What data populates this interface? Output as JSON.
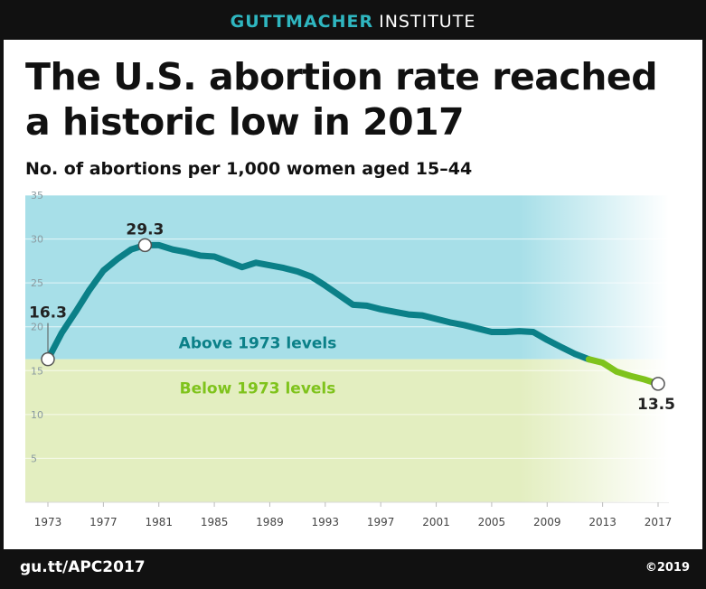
{
  "header": {
    "brand": "GUTTMACHER",
    "institute": "INSTITUTE"
  },
  "title_line1": "The U.S. abortion rate reached",
  "title_line2": "a historic low in 2017",
  "footer": {
    "url": "gu.tt/APC2017",
    "copyright": "©2019"
  },
  "colors": {
    "above_fill": "#a7dfe8",
    "below_fill": "#e3eec0",
    "line_above": "#0b8088",
    "line_below": "#7fc31c",
    "above_text": "#0b8088",
    "below_text": "#7fc31c"
  },
  "chart_data": {
    "type": "line",
    "title": "No. of abortions per 1,000 women aged 15–44",
    "ylim": [
      0,
      35
    ],
    "yticks": [
      5,
      10,
      15,
      20,
      25,
      30,
      35
    ],
    "xlim": [
      1973,
      2017
    ],
    "xticks": [
      "1973",
      "1977",
      "1981",
      "1985",
      "1989",
      "1993",
      "1997",
      "2001",
      "2005",
      "2009",
      "2013",
      "2017"
    ],
    "threshold": 16.3,
    "region_labels": {
      "above": "Above 1973 levels",
      "below": "Below 1973 levels"
    },
    "series": [
      {
        "x": [
          1973,
          1974,
          1975,
          1976,
          1977,
          1978,
          1979,
          1980,
          1981,
          1982,
          1983,
          1984,
          1985,
          1986,
          1987,
          1988,
          1989,
          1990,
          1991,
          1992,
          1993,
          1994,
          1995,
          1996,
          1997,
          1998,
          1999,
          2000,
          2001,
          2002,
          2003,
          2004,
          2005,
          2006,
          2007,
          2008,
          2009,
          2010,
          2011,
          2012,
          2013,
          2014,
          2015,
          2016,
          2017
        ],
        "y": [
          16.3,
          19.3,
          21.7,
          24.2,
          26.4,
          27.7,
          28.8,
          29.3,
          29.3,
          28.8,
          28.5,
          28.1,
          28.0,
          27.4,
          26.8,
          27.3,
          27.0,
          26.7,
          26.3,
          25.7,
          24.7,
          23.6,
          22.5,
          22.4,
          22.0,
          21.7,
          21.4,
          21.3,
          20.9,
          20.5,
          20.2,
          19.8,
          19.4,
          19.4,
          19.5,
          19.4,
          18.5,
          17.7,
          16.9,
          16.3,
          15.9,
          14.9,
          14.4,
          14.0,
          13.5
        ]
      }
    ],
    "callouts": [
      {
        "x": 1973,
        "y": 16.3,
        "label": "16.3"
      },
      {
        "x": 1980,
        "y": 29.3,
        "label": "29.3"
      },
      {
        "x": 2017,
        "y": 13.5,
        "label": "13.5"
      }
    ]
  }
}
